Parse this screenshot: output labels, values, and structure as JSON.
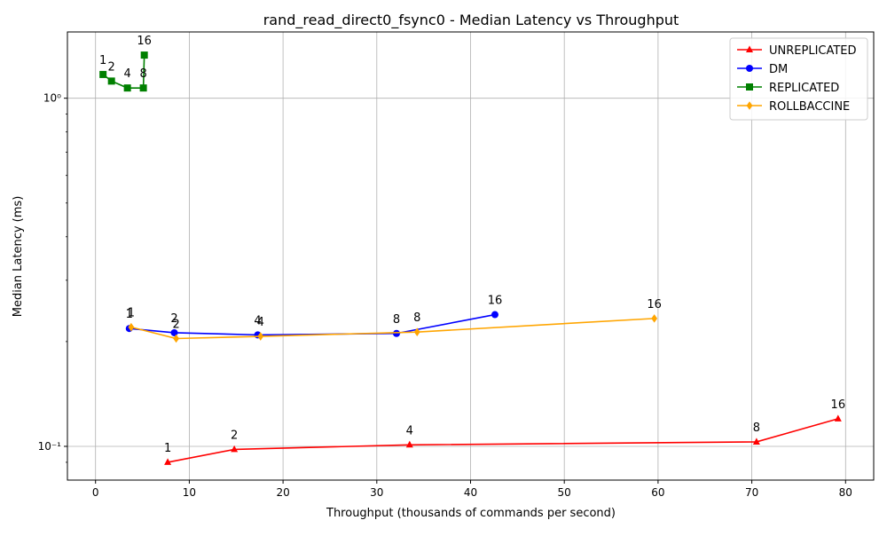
{
  "chart_data": {
    "type": "line",
    "title": "rand_read_direct0_fsync0 - Median Latency vs Throughput",
    "xlabel": "Throughput (thousands of commands per second)",
    "ylabel": "Median Latency (ms)",
    "xlim": [
      -3,
      83
    ],
    "ylim": [
      0.08,
      1.55
    ],
    "yscale": "log",
    "x_ticks": [
      0,
      10,
      20,
      30,
      40,
      50,
      60,
      70,
      80
    ],
    "x_tick_labels": [
      "0",
      "10",
      "20",
      "30",
      "40",
      "50",
      "60",
      "70",
      "80"
    ],
    "y_ticks": [
      0.1,
      1.0
    ],
    "y_tick_labels": [
      "10⁻¹",
      "10⁰"
    ],
    "grid": true,
    "legend_position": "top-right",
    "series": [
      {
        "name": "UNREPLICATED",
        "color": "#ff0000",
        "marker": "triangle",
        "x": [
          7.7,
          14.8,
          33.5,
          70.5,
          79.2
        ],
        "y": [
          0.09,
          0.098,
          0.101,
          0.103,
          0.12
        ],
        "labels": [
          "1",
          "2",
          "4",
          "8",
          "16"
        ]
      },
      {
        "name": "DM",
        "color": "#0000ff",
        "marker": "circle",
        "x": [
          3.6,
          8.4,
          17.3,
          32.1,
          42.6
        ],
        "y": [
          0.218,
          0.212,
          0.209,
          0.211,
          0.239
        ],
        "labels": [
          "1",
          "2",
          "4",
          "8",
          "16"
        ]
      },
      {
        "name": "REPLICATED",
        "color": "#008000",
        "marker": "square",
        "x": [
          0.8,
          1.7,
          3.4,
          5.1,
          5.2
        ],
        "y": [
          1.17,
          1.12,
          1.07,
          1.07,
          1.33
        ],
        "labels": [
          "1",
          "2",
          "4",
          "8",
          "16"
        ]
      },
      {
        "name": "ROLLBACCINE",
        "color": "#ffa500",
        "marker": "diamond",
        "x": [
          3.8,
          8.6,
          17.6,
          34.3,
          59.6
        ],
        "y": [
          0.22,
          0.204,
          0.207,
          0.213,
          0.233
        ],
        "labels": [
          "1",
          "2",
          "4",
          "8",
          "16"
        ]
      }
    ]
  }
}
